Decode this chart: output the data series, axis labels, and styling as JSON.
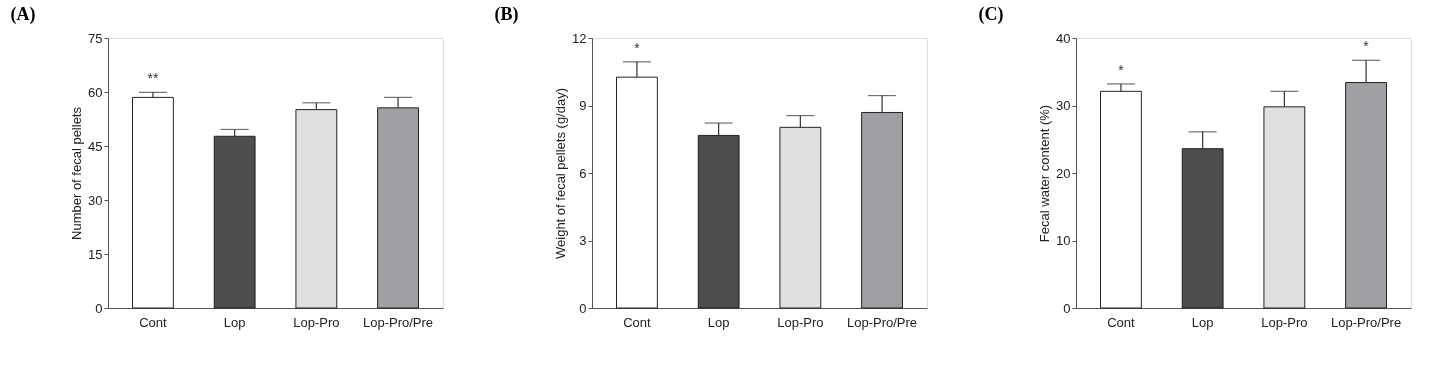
{
  "chart_data": [
    {
      "type": "bar",
      "title": "(A)",
      "ylabel": "Number of fecal pellets",
      "categories": [
        "Cont",
        "Lop",
        "Lop-Pro",
        "Lop-Pro/Pre"
      ],
      "values": [
        58.5,
        47.7,
        55.1,
        55.6
      ],
      "colors": [
        "#ffffff",
        "#4d4d4d",
        "#e0e0e0",
        "#a0a0a4"
      ],
      "errors": [
        [
          58.5,
          59.9
        ],
        [
          47.7,
          49.6
        ],
        [
          55.1,
          57.0
        ],
        [
          55.6,
          58.5
        ]
      ],
      "ylim": [
        0,
        75
      ],
      "yticks": [
        0,
        15,
        30,
        45,
        60,
        75
      ],
      "grid": false,
      "annotations": [
        {
          "text": "**",
          "x": "Cont",
          "y": 59.9
        }
      ]
    },
    {
      "type": "bar",
      "title": "(B)",
      "ylabel": "Weight of fecal pellets (g/day)",
      "categories": [
        "Cont",
        "Lop",
        "Lop-Pro",
        "Lop-Pro/Pre"
      ],
      "values": [
        10.26,
        7.67,
        8.03,
        8.69
      ],
      "colors": [
        "#ffffff",
        "#4d4d4d",
        "#e0e0e0",
        "#a0a0a4"
      ],
      "errors": [
        [
          10.26,
          10.94
        ],
        [
          7.67,
          8.22
        ],
        [
          8.03,
          8.55
        ],
        [
          8.69,
          9.44
        ]
      ],
      "ylim": [
        0,
        12
      ],
      "yticks": [
        0,
        3,
        6,
        9,
        12
      ],
      "grid": false,
      "annotations": [
        {
          "text": "*",
          "x": "Cont",
          "y": 10.94
        }
      ]
    },
    {
      "type": "bar",
      "title": "(C)",
      "ylabel": "Fecal water content (%)",
      "categories": [
        "Cont",
        "Lop",
        "Lop-Pro",
        "Lop-Pro/Pre"
      ],
      "values": [
        32.1,
        23.6,
        29.8,
        33.4
      ],
      "colors": [
        "#ffffff",
        "#4d4d4d",
        "#e0e0e0",
        "#a0a0a4"
      ],
      "errors": [
        [
          32.1,
          33.2
        ],
        [
          23.6,
          26.1
        ],
        [
          29.8,
          32.1
        ],
        [
          33.4,
          36.7
        ]
      ],
      "ylim": [
        0,
        40
      ],
      "yticks": [
        0,
        10,
        20,
        30,
        40
      ],
      "grid": false,
      "annotations": [
        {
          "text": "*",
          "x": "Cont",
          "y": 33.2
        },
        {
          "text": "*",
          "x": "Lop-Pro/Pre",
          "y": 36.7
        }
      ]
    }
  ]
}
